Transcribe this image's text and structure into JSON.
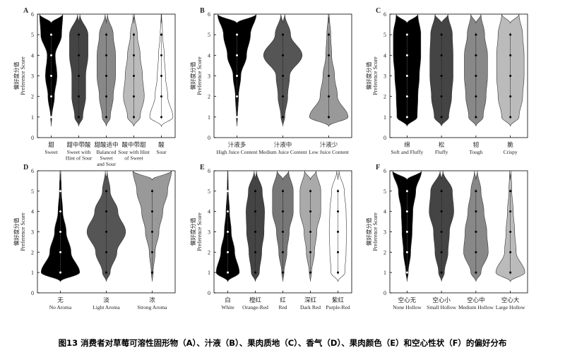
{
  "caption": "图13 消费者对草莓可溶性固形物（A）、汁液（B）、果肉质地（C）、香气（D）、果肉颜色（E）和空心性状（F）的偏好分布",
  "chart_data": [
    {
      "type": "violin",
      "panel": "A",
      "ylabel_cn": "偏好度分值",
      "ylabel_en": "Preference Score",
      "ylim": [
        0,
        6
      ],
      "yticks": [
        "0",
        "1",
        "2",
        "3",
        "4",
        "5",
        "6"
      ],
      "categories": [
        {
          "cn": "甜",
          "en": [
            "Sweet"
          ],
          "color": "#000000",
          "density": [
            0.05,
            0.28,
            0.5,
            0.35,
            0.9,
            1.0
          ]
        },
        {
          "cn": "甜中带酸",
          "en": [
            "Sweet with",
            "Hint of Sour"
          ],
          "color": "#444444",
          "density": [
            0.35,
            0.6,
            0.6,
            0.8,
            0.8,
            0.1
          ]
        },
        {
          "cn": "甜酸适中",
          "en": [
            "Balanced",
            "Sweet",
            "and Sour"
          ],
          "color": "#888888",
          "density": [
            0.35,
            0.6,
            0.8,
            0.8,
            0.6,
            0.1
          ]
        },
        {
          "cn": "酸中带甜",
          "en": [
            "Sour with Hint",
            "of Sweet"
          ],
          "color": "#bbbbbb",
          "density": [
            0.55,
            0.9,
            0.75,
            0.55,
            0.3,
            0.05
          ]
        },
        {
          "cn": "酸",
          "en": [
            "Sour"
          ],
          "color": "#ffffff",
          "density": [
            1.0,
            0.55,
            0.35,
            0.25,
            0.1,
            0.02
          ]
        }
      ]
    },
    {
      "type": "violin",
      "panel": "B",
      "ylabel_cn": "偏好度分值",
      "ylabel_en": "Preference Score",
      "ylim": [
        0,
        6
      ],
      "yticks": [
        "0",
        "1",
        "2",
        "3",
        "4",
        "5",
        "6"
      ],
      "categories": [
        {
          "cn": "汁液多",
          "en": [
            "High Juice Content"
          ],
          "color": "#000000",
          "density": [
            0.03,
            0.08,
            0.2,
            0.5,
            0.7,
            1.0
          ]
        },
        {
          "cn": "汁液中",
          "en": [
            "Medium Juice Content"
          ],
          "color": "#555555",
          "density": [
            0.1,
            0.25,
            0.35,
            1.0,
            0.4,
            0.1
          ]
        },
        {
          "cn": "汁液少",
          "en": [
            "Low Juice Content"
          ],
          "color": "#999999",
          "density": [
            1.0,
            0.45,
            0.3,
            0.15,
            0.1,
            0.02
          ]
        }
      ]
    },
    {
      "type": "violin",
      "panel": "C",
      "ylabel_cn": "偏好度分值",
      "ylabel_en": "Preference Score",
      "ylim": [
        0,
        6
      ],
      "yticks": [
        "0",
        "1",
        "2",
        "3",
        "4",
        "5",
        "6"
      ],
      "categories": [
        {
          "cn": "绵",
          "en": [
            "Soft and Fluffy"
          ],
          "color": "#000000",
          "density": [
            0.7,
            0.75,
            0.85,
            0.95,
            0.95,
            0.75
          ]
        },
        {
          "cn": "松",
          "en": [
            "Fluffy"
          ],
          "color": "#444444",
          "density": [
            0.5,
            0.7,
            0.8,
            0.8,
            0.75,
            0.45
          ]
        },
        {
          "cn": "韧",
          "en": [
            "Tough"
          ],
          "color": "#888888",
          "density": [
            0.5,
            0.7,
            0.8,
            0.8,
            0.6,
            0.35
          ]
        },
        {
          "cn": "脆",
          "en": [
            "Crispy"
          ],
          "color": "#bbbbbb",
          "density": [
            0.6,
            0.85,
            0.95,
            0.95,
            0.85,
            0.6
          ]
        }
      ]
    },
    {
      "type": "violin",
      "panel": "D",
      "ylabel_cn": "偏好度分值",
      "ylabel_en": "Preference Score",
      "ylim": [
        0,
        6
      ],
      "yticks": [
        "0",
        "1",
        "2",
        "3",
        "4",
        "5",
        "6"
      ],
      "categories": [
        {
          "cn": "无",
          "en": [
            "No Aroma"
          ],
          "color": "#000000",
          "density": [
            1.0,
            0.55,
            0.3,
            0.12,
            0.05,
            0.02
          ]
        },
        {
          "cn": "淡",
          "en": [
            "Light Aroma"
          ],
          "color": "#555555",
          "density": [
            0.2,
            0.55,
            1.0,
            0.6,
            0.2,
            0.05
          ]
        },
        {
          "cn": "浓",
          "en": [
            "Strong Aroma"
          ],
          "color": "#999999",
          "density": [
            0.05,
            0.15,
            0.35,
            0.55,
            0.8,
            1.0
          ]
        }
      ]
    },
    {
      "type": "violin",
      "panel": "E",
      "ylabel_cn": "偏好度分值",
      "ylabel_en": "Preference Score",
      "ylim": [
        0,
        6
      ],
      "yticks": [
        "0",
        "1",
        "2",
        "3",
        "4",
        "5",
        "6"
      ],
      "categories": [
        {
          "cn": "白",
          "en": [
            "White"
          ],
          "color": "#000000",
          "density": [
            1.0,
            0.6,
            0.3,
            0.15,
            0.05,
            0.02
          ]
        },
        {
          "cn": "橙红",
          "en": [
            "Orange-Red"
          ],
          "color": "#444444",
          "density": [
            0.35,
            0.55,
            0.75,
            0.8,
            0.6,
            0.1
          ]
        },
        {
          "cn": "红",
          "en": [
            "Red"
          ],
          "color": "#777777",
          "density": [
            0.1,
            0.35,
            0.55,
            0.9,
            0.9,
            0.5
          ]
        },
        {
          "cn": "深红",
          "en": [
            "Dark Red"
          ],
          "color": "#aaaaaa",
          "density": [
            0.1,
            0.35,
            0.55,
            0.9,
            0.9,
            0.5
          ]
        },
        {
          "cn": "紫红",
          "en": [
            "Purple-Red"
          ],
          "color": "#ffffff",
          "density": [
            0.6,
            0.7,
            0.75,
            0.7,
            0.55,
            0.1
          ]
        }
      ]
    },
    {
      "type": "violin",
      "panel": "F",
      "ylabel_cn": "偏好度分值",
      "ylabel_en": "Preference Score",
      "ylim": [
        0,
        6
      ],
      "yticks": [
        "0",
        "1",
        "2",
        "3",
        "4",
        "5",
        "6"
      ],
      "categories": [
        {
          "cn": "空心无",
          "en": [
            "None Hollow"
          ],
          "color": "#000000",
          "density": [
            0.08,
            0.25,
            0.35,
            0.4,
            0.6,
            1.0
          ]
        },
        {
          "cn": "空心小",
          "en": [
            "Small Hollow"
          ],
          "color": "#444444",
          "density": [
            0.2,
            0.45,
            0.55,
            0.85,
            0.75,
            0.1
          ]
        },
        {
          "cn": "空心中",
          "en": [
            "Medium Hollow"
          ],
          "color": "#888888",
          "density": [
            0.35,
            0.85,
            0.75,
            0.55,
            0.35,
            0.1
          ]
        },
        {
          "cn": "空心大",
          "en": [
            "Large Hollow"
          ],
          "color": "#bbbbbb",
          "density": [
            1.0,
            0.4,
            0.3,
            0.2,
            0.1,
            0.05
          ]
        }
      ]
    }
  ]
}
